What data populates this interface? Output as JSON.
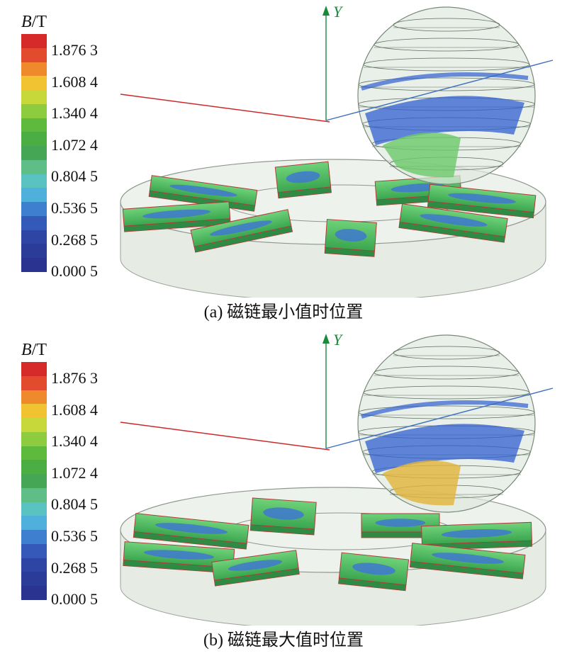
{
  "legend": {
    "title_var": "B",
    "title_unit": "/T",
    "ticks": [
      "1.876 3",
      "1.608 4",
      "1.340 4",
      "1.072 4",
      "0.804 5",
      "0.536 5",
      "0.268 5",
      "0.000 5"
    ],
    "colors": [
      "#d62a2a",
      "#e24b2e",
      "#ef8a2c",
      "#f1c232",
      "#c6d83a",
      "#8dcc3e",
      "#5dba3c",
      "#4aae42",
      "#45a655",
      "#5fbe86",
      "#5bc2c2",
      "#4fb0dc",
      "#3f7fd0",
      "#3559b8",
      "#2e45a6",
      "#2b3b98",
      "#2a3490"
    ],
    "sizes": {
      "tick_count": 8
    }
  },
  "panels": [
    {
      "caption": "(a) 磁链最小值时位置",
      "axis_label": "Y",
      "variant": "min"
    },
    {
      "caption": "(b) 磁链最大值时位置",
      "axis_label": "Y",
      "variant": "max"
    }
  ]
}
